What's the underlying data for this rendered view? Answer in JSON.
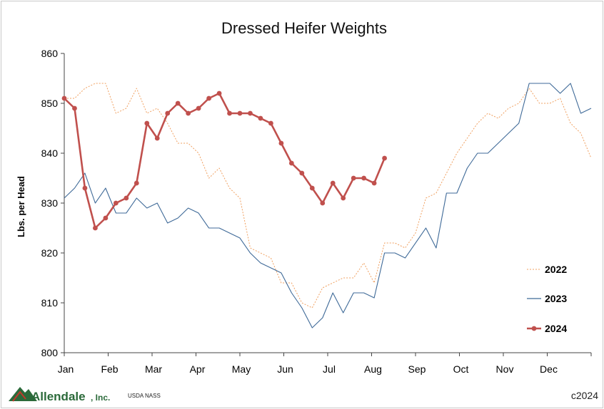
{
  "chart_data": {
    "type": "line",
    "title": "Dressed Heifer Weights",
    "xlabel": "",
    "ylabel": "Lbs. per Head",
    "ylim": [
      800,
      860
    ],
    "yticks": [
      800,
      810,
      820,
      830,
      840,
      850,
      860
    ],
    "x_tick_labels": [
      "Jan",
      "Feb",
      "Mar",
      "Apr",
      "May",
      "Jun",
      "Jul",
      "Aug",
      "Sep",
      "Oct",
      "Nov",
      "Dec"
    ],
    "x_unit": "week of year",
    "grid": false,
    "legend_position": "right",
    "series": [
      {
        "name": "2022",
        "color": "#f0a060",
        "style": "dotted",
        "values": [
          851,
          851,
          853,
          854,
          854,
          848,
          849,
          853,
          848,
          849,
          846,
          842,
          842,
          840,
          835,
          837,
          833,
          831,
          821,
          820,
          819,
          814,
          814,
          810,
          809,
          813,
          814,
          815,
          815,
          818,
          814,
          822,
          822,
          821,
          824,
          831,
          832,
          836,
          840,
          843,
          846,
          848,
          847,
          849,
          850,
          853,
          850,
          850,
          851,
          846,
          844,
          839
        ]
      },
      {
        "name": "2023",
        "color": "#3f6a98",
        "style": "solid",
        "values": [
          831,
          833,
          836,
          830,
          833,
          828,
          828,
          831,
          829,
          830,
          826,
          827,
          829,
          828,
          825,
          825,
          824,
          823,
          820,
          818,
          817,
          816,
          812,
          809,
          805,
          807,
          812,
          808,
          812,
          812,
          811,
          820,
          820,
          819,
          822,
          825,
          821,
          832,
          832,
          837,
          840,
          840,
          842,
          844,
          846,
          854,
          854,
          854,
          852,
          854,
          848,
          849
        ]
      },
      {
        "name": "2024",
        "color": "#c0504d",
        "style": "solid-markers",
        "values": [
          851,
          849,
          833,
          825,
          827,
          830,
          831,
          834,
          846,
          843,
          848,
          850,
          848,
          849,
          851,
          852,
          848,
          848,
          848,
          847,
          846,
          842,
          838,
          836,
          833,
          830,
          834,
          831,
          835,
          835,
          834,
          839
        ]
      }
    ]
  },
  "footer": {
    "logo_name": "Allendale",
    "logo_suffix": ", Inc.",
    "source": "USDA NASS",
    "copyright": "c2024"
  }
}
